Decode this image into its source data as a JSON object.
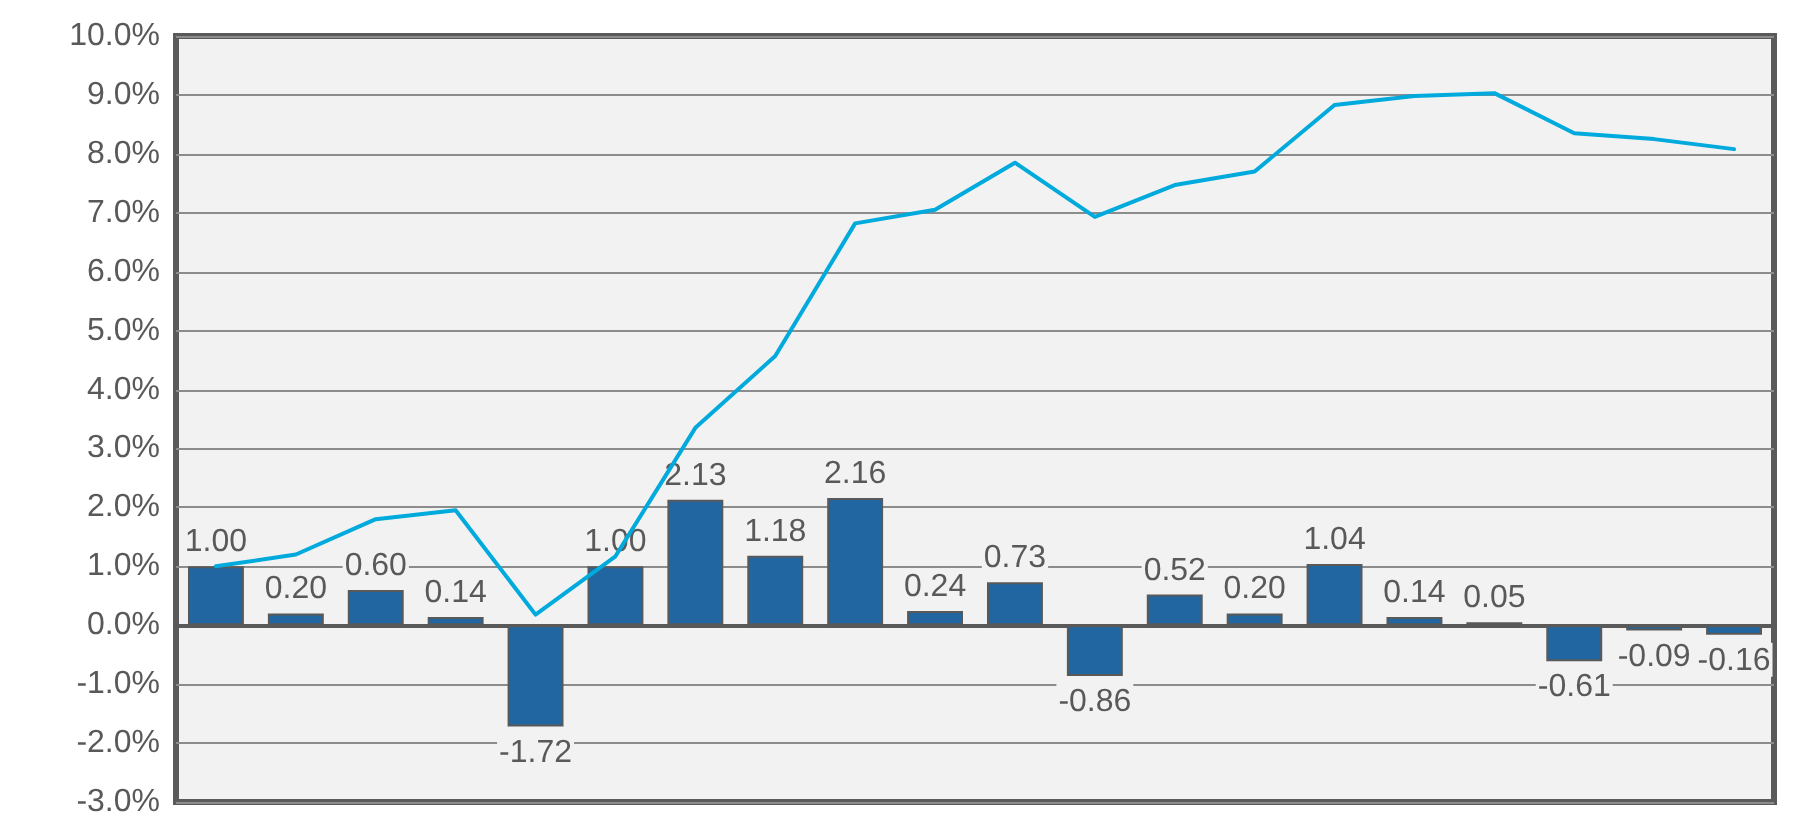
{
  "chart_data": {
    "type": "bar",
    "categories": [
      null,
      null,
      null,
      null,
      null,
      null,
      null,
      null,
      null,
      null,
      null,
      null,
      null,
      null,
      null,
      null,
      null,
      null,
      null,
      null
    ],
    "series": [
      {
        "color": "#2166a0",
        "values": [
          1.0,
          0.2,
          0.6,
          0.14,
          -1.72,
          1.0,
          2.13,
          1.18,
          2.16,
          0.24,
          0.73,
          -0.86,
          0.52,
          0.2,
          1.04,
          0.14,
          0.05,
          -0.61,
          -0.09,
          -0.16
        ],
        "value_labels": [
          "1.00",
          "0.20",
          "0.60",
          "0.14",
          "-1.72",
          "1.00",
          "2.13",
          "1.18",
          "2.16",
          "0.24",
          "0.73",
          "-0.86",
          "0.52",
          "0.20",
          "1.04",
          "0.14",
          "0.05",
          "-0.61",
          "-0.09",
          "-0.16"
        ]
      },
      {
        "type": "line",
        "color": "#00aadd",
        "values": [
          1.0,
          1.2,
          1.8,
          1.95,
          0.18,
          1.17,
          3.35,
          4.57,
          6.82,
          7.05,
          7.85,
          6.93,
          7.47,
          7.7,
          8.83,
          8.98,
          9.03,
          8.35,
          8.25,
          8.08
        ]
      }
    ],
    "ylim": [
      -3,
      10
    ],
    "yticks": [
      {
        "value": -3,
        "label": "-3.0%"
      },
      {
        "value": -2,
        "label": "-2.0%"
      },
      {
        "value": -1,
        "label": "-1.0%"
      },
      {
        "value": 0,
        "label": "0.0%"
      },
      {
        "value": 1,
        "label": "1.0%"
      },
      {
        "value": 2,
        "label": "2.0%"
      },
      {
        "value": 3,
        "label": "3.0%"
      },
      {
        "value": 4,
        "label": "4.0%"
      },
      {
        "value": 5,
        "label": "5.0%"
      },
      {
        "value": 6,
        "label": "6.0%"
      },
      {
        "value": 7,
        "label": "7.0%"
      },
      {
        "value": 8,
        "label": "8.0%"
      },
      {
        "value": 9,
        "label": "9.0%"
      },
      {
        "value": 10,
        "label": "10.0%"
      }
    ],
    "grid": "y",
    "marker": "none",
    "line_style": "solid"
  }
}
